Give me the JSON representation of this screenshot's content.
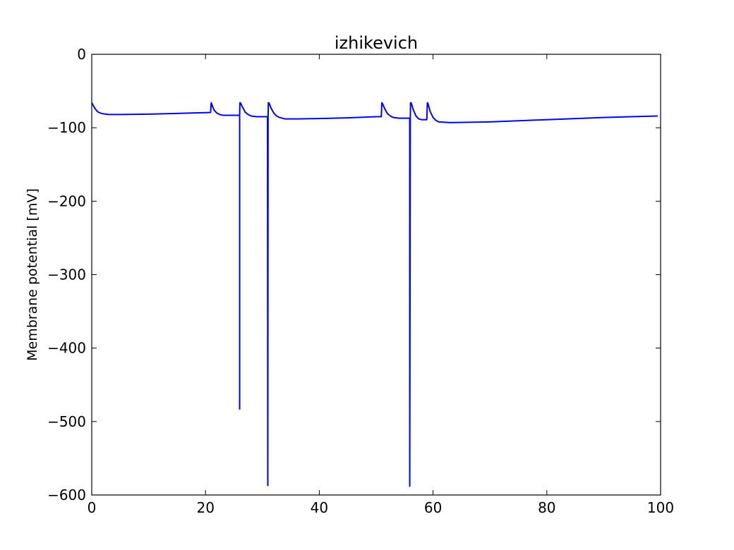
{
  "chart_data": {
    "type": "line",
    "title": "izhikevich",
    "xlabel": "",
    "ylabel": "Membrane potential [mV]",
    "xlim": [
      0,
      100
    ],
    "ylim": [
      -600,
      0
    ],
    "xticks": [
      0,
      20,
      40,
      60,
      80,
      100
    ],
    "yticks": [
      0,
      -100,
      -200,
      -300,
      -400,
      -500,
      -600
    ],
    "xtick_labels": [
      "0",
      "20",
      "40",
      "60",
      "80",
      "100"
    ],
    "ytick_labels": [
      "0",
      "−100",
      "−200",
      "−300",
      "−400",
      "−500",
      "−600"
    ],
    "grid": false,
    "series": [
      {
        "color": "#0000ff",
        "x": [
          0,
          0.5,
          1,
          1.5,
          2,
          3,
          5,
          10,
          15,
          20,
          20.9,
          21,
          21.1,
          21.5,
          22,
          22.5,
          23,
          24,
          25,
          25.9,
          26,
          26,
          26,
          26.05,
          26.15,
          26.5,
          27,
          27.5,
          28,
          29,
          30,
          30.9,
          30.95,
          31,
          31.05,
          31.15,
          31.5,
          32,
          32.5,
          33,
          34,
          36,
          40,
          45,
          50,
          50.9,
          51,
          51.1,
          51.5,
          52,
          52.5,
          53,
          54,
          55,
          55.9,
          55.9,
          56,
          56.05,
          56.15,
          56.5,
          57,
          57.5,
          58,
          58.8,
          58.9,
          59,
          59.1,
          59.5,
          60,
          60.5,
          61,
          63,
          70,
          80,
          90,
          99.5
        ],
        "y": [
          -66,
          -73,
          -78,
          -80,
          -81,
          -82,
          -82,
          -81.5,
          -80.5,
          -79.5,
          -79.2,
          -66,
          -68,
          -76,
          -80,
          -82,
          -83,
          -83,
          -83,
          -83,
          -83,
          -483,
          -83,
          -66,
          -66,
          -72,
          -79,
          -82,
          -84,
          -85,
          -85,
          -85,
          -587,
          -85,
          -66,
          -66,
          -73,
          -80,
          -84,
          -86,
          -88,
          -88,
          -87.5,
          -86.5,
          -85,
          -84.8,
          -66,
          -67,
          -74,
          -81,
          -84,
          -86,
          -87,
          -87,
          -87,
          -588,
          -87,
          -66,
          -66,
          -75,
          -84,
          -88,
          -89,
          -89,
          -89,
          -66,
          -67,
          -78,
          -86,
          -90,
          -92,
          -93,
          -92,
          -89,
          -86,
          -84
        ]
      }
    ]
  }
}
